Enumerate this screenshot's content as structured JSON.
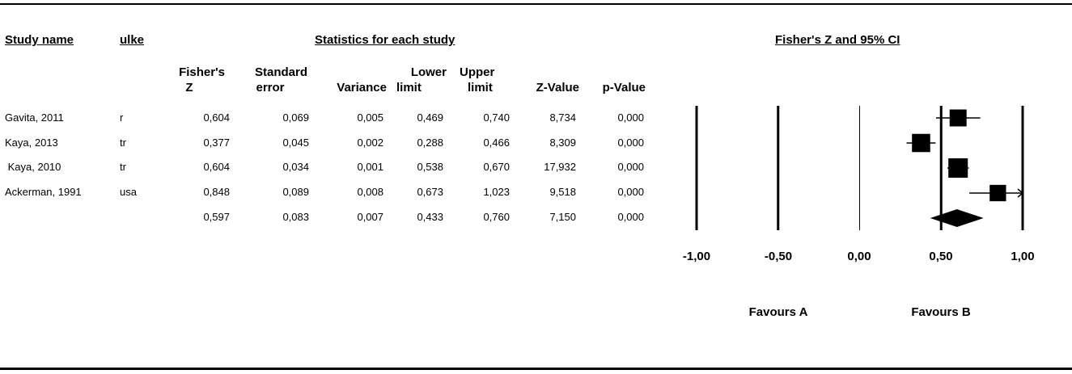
{
  "headers": {
    "study_name": "Study name",
    "country": "ulke",
    "stats_group": "Statistics for each study",
    "plot_title": "Fisher's Z and 95% CI"
  },
  "columns": [
    {
      "line1": "Fisher's",
      "line2": "Z"
    },
    {
      "line1": "Standard",
      "line2": "error"
    },
    {
      "line1": "",
      "line2": "Variance"
    },
    {
      "line1": "Lower",
      "line2": "limit"
    },
    {
      "line1": "Upper",
      "line2": "limit"
    },
    {
      "line1": "",
      "line2": "Z-Value"
    },
    {
      "line1": "",
      "line2": "p-Value"
    }
  ],
  "rows": [
    {
      "study": "Gavita, 2011",
      "country": "r",
      "z": "0,604",
      "se": "0,069",
      "var": "0,005",
      "lower": "0,469",
      "upper": "0,740",
      "zval": "8,734",
      "p": "0,000"
    },
    {
      "study": "Kaya, 2013",
      "country": "tr",
      "z": "0,377",
      "se": "0,045",
      "var": "0,002",
      "lower": "0,288",
      "upper": "0,466",
      "zval": "8,309",
      "p": "0,000"
    },
    {
      "study": " Kaya, 2010",
      "country": "tr",
      "z": "0,604",
      "se": "0,034",
      "var": "0,001",
      "lower": "0,538",
      "upper": "0,670",
      "zval": "17,932",
      "p": "0,000"
    },
    {
      "study": "Ackerman, 1991",
      "country": "usa",
      "z": "0,848",
      "se": "0,089",
      "var": "0,008",
      "lower": "0,673",
      "upper": "1,023",
      "zval": "9,518",
      "p": "0,000"
    },
    {
      "study": "",
      "country": "",
      "z": "0,597",
      "se": "0,083",
      "var": "0,007",
      "lower": "0,433",
      "upper": "0,760",
      "zval": "7,150",
      "p": "0,000"
    }
  ],
  "axis": {
    "tick_labels": [
      "-1,00",
      "-0,50",
      "0,00",
      "0,50",
      "1,00"
    ],
    "favours_a": "Favours A",
    "favours_b": "Favours B"
  },
  "chart_data": {
    "type": "forest",
    "title": "Fisher's Z and 95% CI",
    "xlim": [
      -1,
      1
    ],
    "xticks": [
      -1,
      -0.5,
      0,
      0.5,
      1
    ],
    "studies": [
      {
        "name": "Gavita, 2011",
        "estimate": 0.604,
        "lower": 0.469,
        "upper": 0.74
      },
      {
        "name": "Kaya, 2013",
        "estimate": 0.377,
        "lower": 0.288,
        "upper": 0.466
      },
      {
        "name": "Kaya, 2010",
        "estimate": 0.604,
        "lower": 0.538,
        "upper": 0.67
      },
      {
        "name": "Ackerman, 1991",
        "estimate": 0.848,
        "lower": 0.673,
        "upper": 1.023
      }
    ],
    "summary": {
      "estimate": 0.597,
      "lower": 0.433,
      "upper": 0.76
    },
    "weights": [
      0.069,
      0.045,
      0.034,
      0.089
    ]
  }
}
